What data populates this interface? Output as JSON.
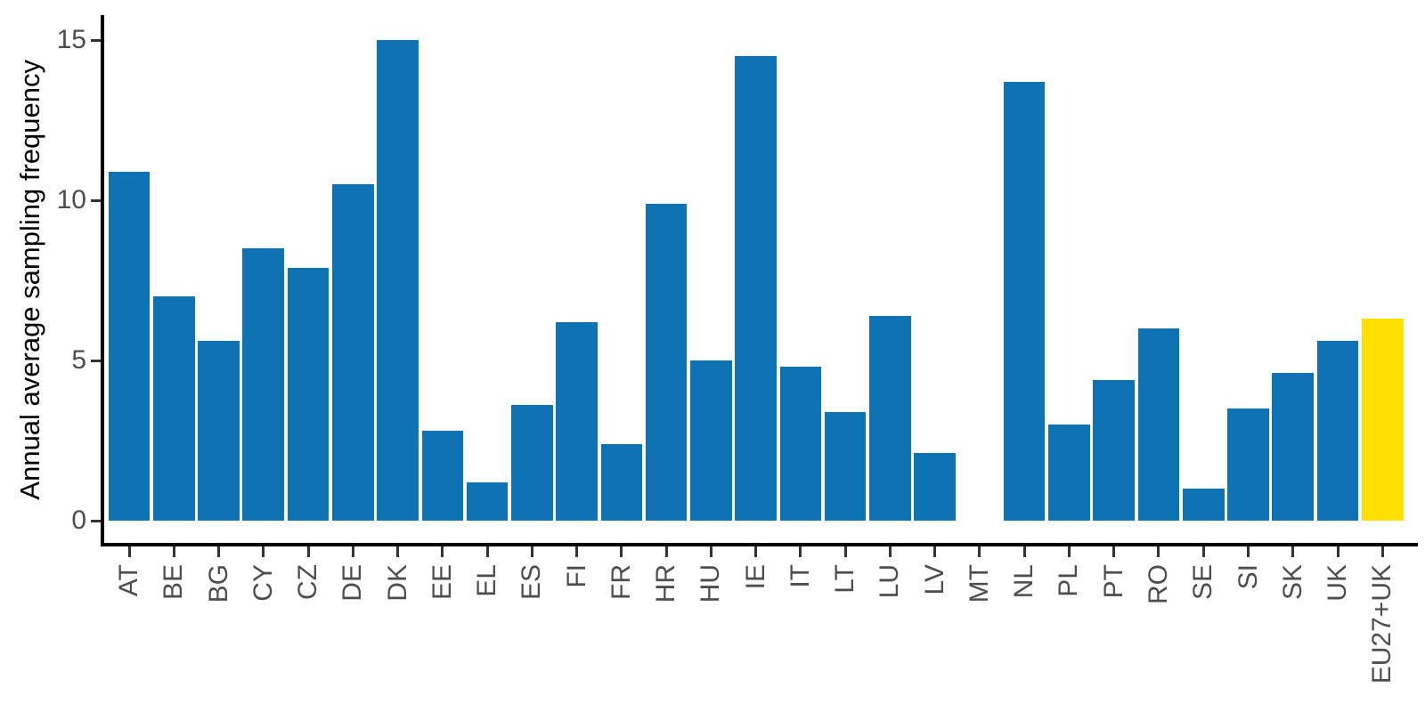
{
  "chart_data": {
    "type": "bar",
    "title": "",
    "xlabel": "",
    "ylabel": "Annual average sampling frequency",
    "ylim": [
      0,
      15.75
    ],
    "yticks": [
      0,
      5,
      10,
      15
    ],
    "grid": false,
    "legend": false,
    "categories": [
      "AT",
      "BE",
      "BG",
      "CY",
      "CZ",
      "DE",
      "DK",
      "EE",
      "EL",
      "ES",
      "FI",
      "FR",
      "HR",
      "HU",
      "IE",
      "IT",
      "LT",
      "LU",
      "LV",
      "MT",
      "NL",
      "PL",
      "PT",
      "RO",
      "SE",
      "SI",
      "SK",
      "UK",
      "EU27+UK"
    ],
    "values": [
      10.9,
      7.0,
      5.6,
      8.5,
      7.9,
      10.5,
      15.0,
      2.8,
      1.2,
      3.6,
      6.2,
      2.4,
      9.9,
      5.0,
      14.5,
      4.8,
      3.4,
      6.4,
      2.1,
      0,
      13.7,
      3.0,
      4.4,
      6.0,
      1.0,
      3.5,
      4.6,
      5.6,
      6.3
    ],
    "highlight_category": "EU27+UK",
    "colors": {
      "bar": "#0e73b5",
      "highlight": "#ffe000",
      "axis_line": "#000000",
      "tick_mark": "#333333",
      "tick_label": "#4d4d4d",
      "axis_title": "#000000"
    }
  }
}
